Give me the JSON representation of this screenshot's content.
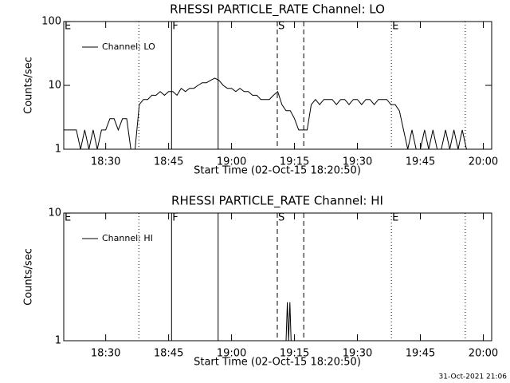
{
  "chart_data": [
    {
      "type": "line",
      "title": "RHESSI PARTICLE_RATE Channel: LO",
      "xlabel": "Start Time (02-Oct-15 18:20:50)",
      "ylabel": "Counts/sec",
      "xlim": [
        1100,
        1202
      ],
      "xticks": [
        {
          "value": 1110,
          "label": "18:30"
        },
        {
          "value": 1125,
          "label": "18:45"
        },
        {
          "value": 1140,
          "label": "19:00"
        },
        {
          "value": 1155,
          "label": "19:15"
        },
        {
          "value": 1170,
          "label": "19:30"
        },
        {
          "value": 1185,
          "label": "19:45"
        },
        {
          "value": 1200,
          "label": "20:00"
        }
      ],
      "ylim": [
        1,
        100
      ],
      "yticks": [
        1,
        10,
        100
      ],
      "ylog": true,
      "legend": "upper left",
      "series": [
        {
          "name": "Channel: LO",
          "color": "#000000",
          "x": [
            1100,
            1101,
            1102,
            1103,
            1104,
            1105,
            1106,
            1107,
            1108,
            1109,
            1110,
            1111,
            1112,
            1113,
            1114,
            1115,
            1116,
            1117,
            1118,
            1119,
            1120,
            1121,
            1122,
            1123,
            1124,
            1125,
            1126,
            1127,
            1128,
            1129,
            1130,
            1131,
            1132,
            1133,
            1134,
            1135,
            1136,
            1137,
            1138,
            1139,
            1140,
            1141,
            1142,
            1143,
            1144,
            1145,
            1146,
            1147,
            1148,
            1149,
            1150,
            1151,
            1152,
            1153,
            1154,
            1155,
            1156,
            1157,
            1158,
            1159,
            1160,
            1161,
            1162,
            1163,
            1164,
            1165,
            1166,
            1167,
            1168,
            1169,
            1170,
            1171,
            1172,
            1173,
            1174,
            1175,
            1176,
            1177,
            1178,
            1179,
            1180,
            1181,
            1182,
            1183,
            1184,
            1185,
            1186,
            1187,
            1188,
            1189,
            1190,
            1191,
            1192,
            1193,
            1194,
            1195,
            1196
          ],
          "values": [
            2,
            2,
            2,
            2,
            1,
            2,
            1,
            2,
            1,
            2,
            2,
            3,
            3,
            2,
            3,
            3,
            1,
            1,
            5,
            6,
            6,
            7,
            7,
            8,
            7,
            8,
            8,
            7,
            9,
            8,
            9,
            9,
            10,
            11,
            11,
            12,
            13,
            12,
            10,
            9,
            9,
            8,
            9,
            8,
            8,
            7,
            7,
            6,
            6,
            6,
            7,
            8,
            5,
            4,
            4,
            3,
            2,
            2,
            2,
            5,
            6,
            5,
            6,
            6,
            6,
            5,
            6,
            6,
            5,
            6,
            6,
            5,
            6,
            6,
            5,
            6,
            6,
            6,
            5,
            5,
            4,
            2,
            1,
            2,
            1,
            1,
            2,
            1,
            2,
            1,
            1,
            2,
            1,
            2,
            1,
            2,
            1
          ]
        }
      ],
      "events": [
        {
          "x": 1117.9,
          "style": "dotted"
        },
        {
          "x": 1125.7,
          "style": "solid"
        },
        {
          "x": 1136.8,
          "style": "solid"
        },
        {
          "x": 1150.9,
          "style": "dashed"
        },
        {
          "x": 1157.2,
          "style": "dashed"
        },
        {
          "x": 1178.1,
          "style": "dotted"
        },
        {
          "x": 1195.7,
          "style": "dotted"
        }
      ],
      "event_labels": [
        {
          "x": 1100,
          "text": "E"
        },
        {
          "x": 1125.7,
          "text": "F"
        },
        {
          "x": 1150.9,
          "text": "S"
        },
        {
          "x": 1178.1,
          "text": "E"
        }
      ]
    },
    {
      "type": "line",
      "title": "RHESSI PARTICLE_RATE Channel: HI",
      "xlabel": "Start Time (02-Oct-15 18:20:50)",
      "ylabel": "Counts/sec",
      "xlim": [
        1100,
        1202
      ],
      "xticks": [
        {
          "value": 1110,
          "label": "18:30"
        },
        {
          "value": 1125,
          "label": "18:45"
        },
        {
          "value": 1140,
          "label": "19:00"
        },
        {
          "value": 1155,
          "label": "19:15"
        },
        {
          "value": 1170,
          "label": "19:30"
        },
        {
          "value": 1185,
          "label": "19:45"
        },
        {
          "value": 1200,
          "label": "20:00"
        }
      ],
      "ylim": [
        1,
        10
      ],
      "yticks": [
        1,
        10
      ],
      "ylog": true,
      "legend": "upper left",
      "series": [
        {
          "name": "Channel: HI",
          "color": "#000000",
          "x": [
            1153,
            1153.3,
            1153.6,
            1153.9,
            1154.2
          ],
          "values": [
            1,
            2,
            1,
            2,
            1
          ]
        }
      ],
      "events": [
        {
          "x": 1117.9,
          "style": "dotted"
        },
        {
          "x": 1125.7,
          "style": "solid"
        },
        {
          "x": 1136.8,
          "style": "solid"
        },
        {
          "x": 1150.9,
          "style": "dashed"
        },
        {
          "x": 1157.2,
          "style": "dashed"
        },
        {
          "x": 1178.1,
          "style": "dotted"
        },
        {
          "x": 1195.7,
          "style": "dotted"
        }
      ],
      "event_labels": [
        {
          "x": 1100,
          "text": "E"
        },
        {
          "x": 1125.7,
          "text": "F"
        },
        {
          "x": 1150.9,
          "text": "S"
        },
        {
          "x": 1178.1,
          "text": "E"
        }
      ]
    }
  ],
  "footer": "31-Oct-2021 21:06"
}
